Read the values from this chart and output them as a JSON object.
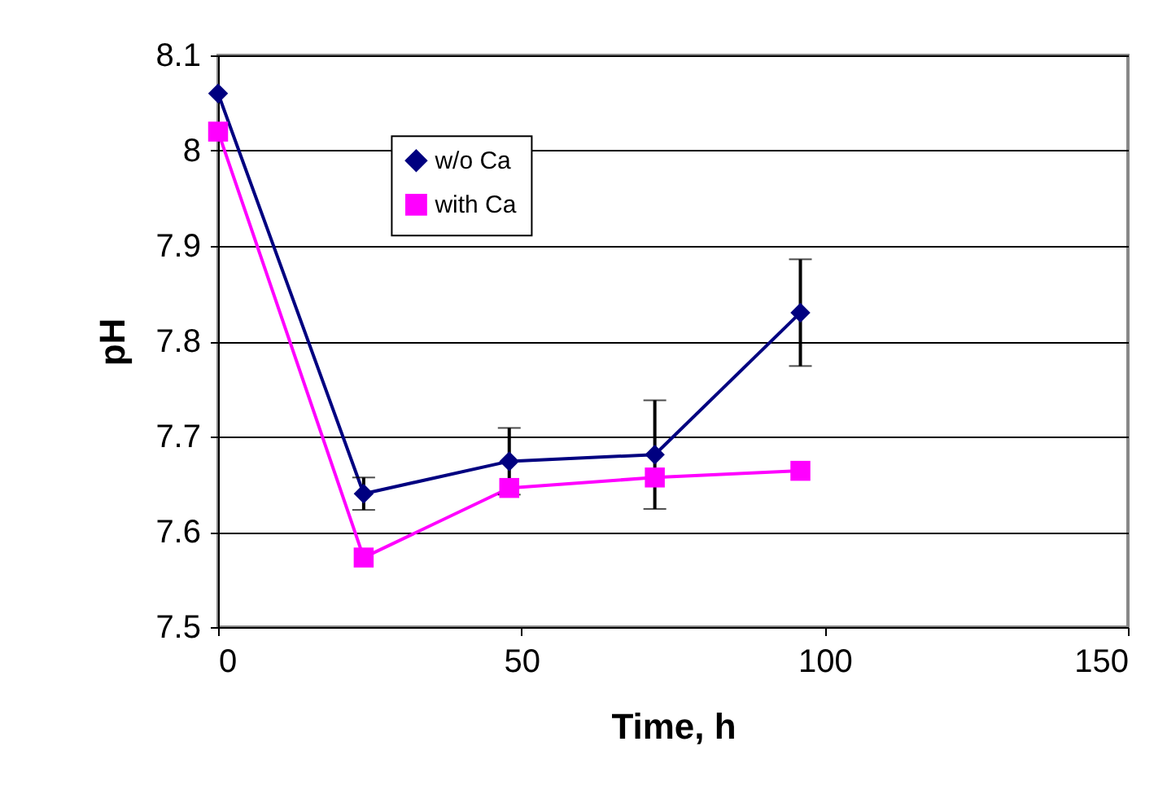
{
  "chart_data": {
    "type": "line",
    "xlabel": "Time, h",
    "ylabel": "pH",
    "x": [
      0,
      24,
      48,
      72,
      96
    ],
    "series": [
      {
        "name": "w/o Ca",
        "color": "#000080",
        "marker": "diamond",
        "values": [
          8.06,
          7.64,
          7.674,
          7.681,
          7.83
        ],
        "errors": [
          null,
          0.017,
          0.035,
          0.057,
          0.056
        ]
      },
      {
        "name": "with Ca",
        "color": "#ff00ff",
        "marker": "square",
        "values": [
          8.02,
          7.573,
          7.646,
          7.657,
          7.664
        ]
      }
    ],
    "xlim": [
      0,
      150
    ],
    "xticks": [
      0,
      50,
      100,
      150
    ],
    "ylim": [
      7.5,
      8.1
    ],
    "yticks": [
      7.5,
      7.6,
      7.7,
      7.8,
      7.9,
      8,
      8.1
    ],
    "grid": "y",
    "legend": "top left"
  }
}
